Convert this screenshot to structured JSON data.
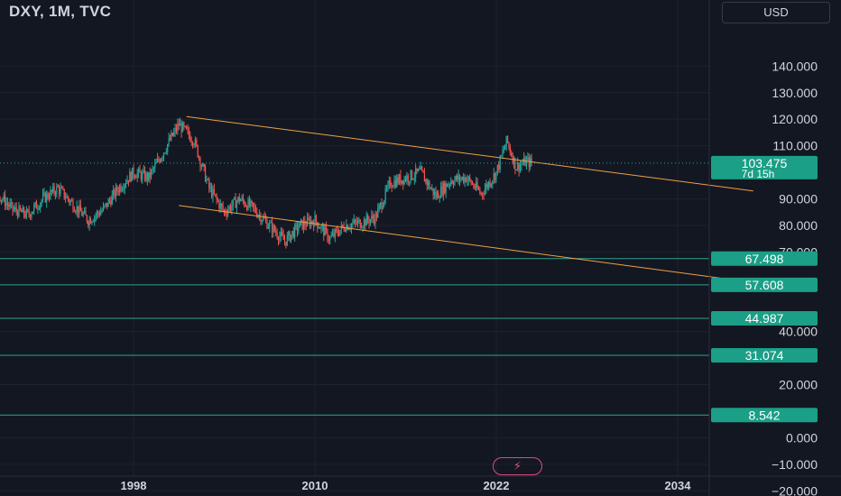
{
  "header": {
    "title": "DXY, 1M, TVC",
    "currency": "USD"
  },
  "colors": {
    "background": "#131722",
    "grid": "#1e222d",
    "up": "#26a69a",
    "down": "#ef5350",
    "trendline": "#f0a045",
    "level_line": "#2fa38c",
    "label_bg": "#1b9f86"
  },
  "chart_data": {
    "type": "candlestick",
    "title": "DXY, 1M, TVC",
    "ylim": [
      -22,
      148
    ],
    "xlim": [
      1976,
      2040
    ],
    "y_ticks": [
      "140.000",
      "130.000",
      "120.000",
      "110.000",
      "90.000",
      "80.000",
      "70.000",
      "40.000",
      "20.000",
      "0.000",
      "−10.000",
      "−20.000"
    ],
    "y_tick_values": [
      140,
      130,
      120,
      110,
      90,
      80,
      70,
      40,
      20,
      0,
      -10,
      -20
    ],
    "x_ticks": [
      "1998",
      "2010",
      "2022",
      "2034"
    ],
    "x_tick_values": [
      1998,
      2010,
      2022,
      2034
    ],
    "price_path": [
      {
        "t": 1985.0,
        "v": 96
      },
      {
        "t": 1986.0,
        "v": 103
      },
      {
        "t": 1987.0,
        "v": 88
      },
      {
        "t": 1988.0,
        "v": 85
      },
      {
        "t": 1989.0,
        "v": 92
      },
      {
        "t": 1990.0,
        "v": 86
      },
      {
        "t": 1991.0,
        "v": 84
      },
      {
        "t": 1992.0,
        "v": 90
      },
      {
        "t": 1993.0,
        "v": 94
      },
      {
        "t": 1994.0,
        "v": 88
      },
      {
        "t": 1995.0,
        "v": 82
      },
      {
        "t": 1996.0,
        "v": 86
      },
      {
        "t": 1997.0,
        "v": 94
      },
      {
        "t": 1998.0,
        "v": 100
      },
      {
        "t": 1999.0,
        "v": 98
      },
      {
        "t": 2000.0,
        "v": 108
      },
      {
        "t": 2001.0,
        "v": 118
      },
      {
        "t": 2002.0,
        "v": 112
      },
      {
        "t": 2003.0,
        "v": 94
      },
      {
        "t": 2004.0,
        "v": 85
      },
      {
        "t": 2005.0,
        "v": 90
      },
      {
        "t": 2006.0,
        "v": 86
      },
      {
        "t": 2007.0,
        "v": 80
      },
      {
        "t": 2008.0,
        "v": 74
      },
      {
        "t": 2009.0,
        "v": 80
      },
      {
        "t": 2010.0,
        "v": 82
      },
      {
        "t": 2011.0,
        "v": 75
      },
      {
        "t": 2012.0,
        "v": 80
      },
      {
        "t": 2013.0,
        "v": 81
      },
      {
        "t": 2014.0,
        "v": 83
      },
      {
        "t": 2015.0,
        "v": 96
      },
      {
        "t": 2016.0,
        "v": 98
      },
      {
        "t": 2017.0,
        "v": 100
      },
      {
        "t": 2018.0,
        "v": 91
      },
      {
        "t": 2019.0,
        "v": 97
      },
      {
        "t": 2020.0,
        "v": 98
      },
      {
        "t": 2021.0,
        "v": 92
      },
      {
        "t": 2022.0,
        "v": 100
      },
      {
        "t": 2022.7,
        "v": 112
      },
      {
        "t": 2023.3,
        "v": 102
      },
      {
        "t": 2024.0,
        "v": 104
      },
      {
        "t": 2024.4,
        "v": 103.475
      }
    ],
    "current_price": {
      "value": 103.475,
      "label": "103.475",
      "countdown": "7d 15h"
    },
    "trendlines": [
      {
        "name": "upper-trendline",
        "from": {
          "t": 2001.5,
          "v": 121
        },
        "to": {
          "t": 2039.0,
          "v": 93
        }
      },
      {
        "name": "lower-trendline",
        "from": {
          "t": 2001.0,
          "v": 87.5
        },
        "to": {
          "t": 2039.0,
          "v": 58.5
        }
      }
    ],
    "horizontal_levels": [
      {
        "value": 67.498,
        "label": "67.498"
      },
      {
        "value": 57.608,
        "label": "57.608"
      },
      {
        "value": 44.987,
        "label": "44.987"
      },
      {
        "value": 31.074,
        "label": "31.074"
      },
      {
        "value": 8.542,
        "label": "8.542"
      }
    ],
    "grid": true
  }
}
